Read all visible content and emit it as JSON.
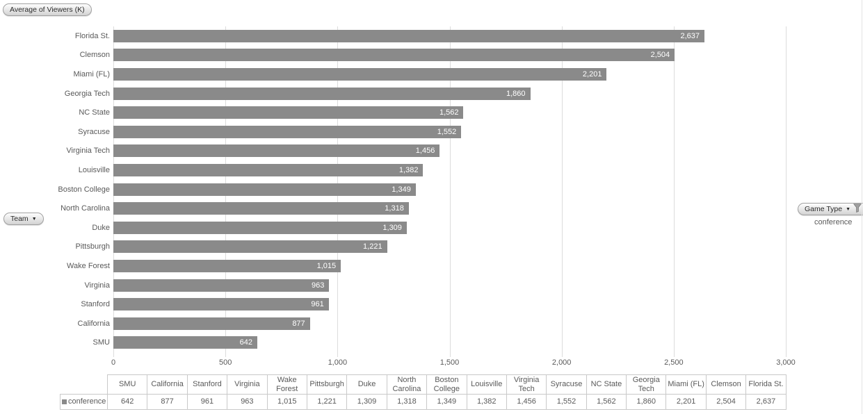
{
  "title_button": "Average of Viewers (K)",
  "axis_field_button": {
    "label": "Team"
  },
  "legend": {
    "field_button": "Game Type",
    "entries": [
      {
        "label": "conference",
        "color": "#8a8a8a"
      }
    ]
  },
  "chart_data": {
    "type": "bar",
    "orientation": "horizontal",
    "title": "Average of Viewers (K)",
    "series": [
      {
        "name": "conference",
        "values": [
          2637,
          2504,
          2201,
          1860,
          1562,
          1552,
          1456,
          1382,
          1349,
          1318,
          1309,
          1221,
          1015,
          963,
          961,
          877,
          642
        ]
      }
    ],
    "categories": [
      "Florida St.",
      "Clemson",
      "Miami (FL)",
      "Georgia Tech",
      "NC State",
      "Syracuse",
      "Virginia Tech",
      "Louisville",
      "Boston College",
      "North Carolina",
      "Duke",
      "Pittsburgh",
      "Wake Forest",
      "Virginia",
      "Stanford",
      "California",
      "SMU"
    ],
    "value_labels": [
      "2,637",
      "2,504",
      "2,201",
      "1,860",
      "1,562",
      "1,552",
      "1,456",
      "1,382",
      "1,349",
      "1,318",
      "1,309",
      "1,221",
      "1,015",
      "963",
      "961",
      "877",
      "642"
    ],
    "bar_color": "#8a8a8a",
    "xlim": [
      0,
      3000
    ],
    "x_ticks": [
      {
        "v": 0,
        "label": "0"
      },
      {
        "v": 500,
        "label": "500"
      },
      {
        "v": 1000,
        "label": "1,000"
      },
      {
        "v": 1500,
        "label": "1,500"
      },
      {
        "v": 2000,
        "label": "2,000"
      },
      {
        "v": 2500,
        "label": "2,500"
      },
      {
        "v": 3000,
        "label": "3,000"
      }
    ],
    "grid": true,
    "legend_position": "right",
    "category_axis_label": "Team",
    "legend_field": "Game Type"
  },
  "data_table": {
    "row_header": "conference",
    "columns": [
      "SMU",
      "California",
      "Stanford",
      "Virginia",
      "Wake Forest",
      "Pittsburgh",
      "Duke",
      "North Carolina",
      "Boston College",
      "Louisville",
      "Virginia Tech",
      "Syracuse",
      "NC State",
      "Georgia Tech",
      "Miami (FL)",
      "Clemson",
      "Florida St."
    ],
    "values": [
      "642",
      "877",
      "961",
      "963",
      "1,015",
      "1,221",
      "1,309",
      "1,318",
      "1,349",
      "1,382",
      "1,456",
      "1,552",
      "1,562",
      "1,860",
      "2,201",
      "2,504",
      "2,637"
    ]
  }
}
